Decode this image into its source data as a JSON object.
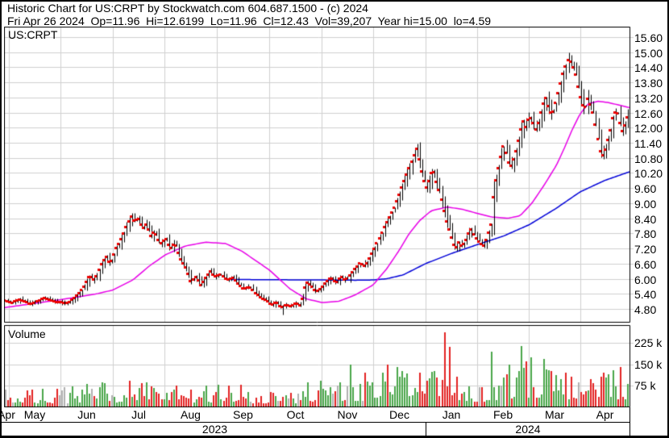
{
  "header": {
    "line1": "Historic Chart for US:CRPT by Stockwatch.com 604.687.1500 - (c) 2024",
    "line2": "Fri Apr 26 2024  Op=11.96  Hi=12.6199  Lo=11.96  Cl=12.43  Vol=39,207  Year hi=15.00  lo=4.59",
    "quote": {
      "date": "Fri Apr 26 2024",
      "open": "11.96",
      "high": "12.6199",
      "low": "11.96",
      "close": "12.43",
      "volume": "39,207",
      "year_high": "15.00",
      "year_low": "4.59"
    }
  },
  "chart_data": {
    "type": "ohlc+volume",
    "symbol": "US:CRPT",
    "volume_label": "Volume",
    "price_axis": {
      "labels": [
        "15.60",
        "15.00",
        "14.40",
        "13.80",
        "13.20",
        "12.60",
        "12.00",
        "11.40",
        "10.80",
        "10.20",
        "9.60",
        "9.00",
        "8.40",
        "7.80",
        "7.20",
        "6.60",
        "6.00",
        "5.40",
        "4.80"
      ],
      "max": 15.6,
      "min": 4.8,
      "step": 0.6
    },
    "volume_axis": {
      "labels": [
        "225 k",
        "150 k",
        "75 k"
      ],
      "values": [
        225,
        150,
        75
      ],
      "unit": "k"
    },
    "months": [
      "Apr",
      "May",
      "Jun",
      "Jul",
      "Aug",
      "Sep",
      "Oct",
      "Nov",
      "Dec",
      "Jan",
      "Feb",
      "Mar",
      "Apr"
    ],
    "month_bounds": [
      0,
      0.0077,
      0.0902,
      0.174,
      0.2565,
      0.3402,
      0.424,
      0.5077,
      0.5902,
      0.674,
      0.7565,
      0.839,
      0.9214,
      1.0
    ],
    "years": [
      {
        "label": "2023",
        "from": 0.0,
        "to": 0.674
      },
      {
        "label": "2024",
        "from": 0.674,
        "to": 1.0
      }
    ],
    "bars": 252,
    "close_anchors": [
      [
        0.001,
        5.15
      ],
      [
        0.013,
        5.05
      ],
      [
        0.026,
        5.2
      ],
      [
        0.045,
        5.0
      ],
      [
        0.064,
        5.25
      ],
      [
        0.084,
        5.1
      ],
      [
        0.103,
        5.05
      ],
      [
        0.116,
        5.3
      ],
      [
        0.129,
        5.7
      ],
      [
        0.138,
        6.15
      ],
      [
        0.146,
        5.95
      ],
      [
        0.155,
        6.5
      ],
      [
        0.164,
        6.9
      ],
      [
        0.171,
        6.6
      ],
      [
        0.18,
        7.2
      ],
      [
        0.189,
        7.6
      ],
      [
        0.197,
        8.1
      ],
      [
        0.204,
        8.5
      ],
      [
        0.21,
        8.25
      ],
      [
        0.215,
        8.45
      ],
      [
        0.223,
        8.0
      ],
      [
        0.229,
        8.2
      ],
      [
        0.236,
        7.7
      ],
      [
        0.242,
        7.9
      ],
      [
        0.251,
        7.4
      ],
      [
        0.26,
        7.6
      ],
      [
        0.267,
        7.2
      ],
      [
        0.274,
        7.45
      ],
      [
        0.283,
        6.8
      ],
      [
        0.293,
        6.4
      ],
      [
        0.3,
        5.9
      ],
      [
        0.308,
        6.1
      ],
      [
        0.316,
        5.75
      ],
      [
        0.323,
        6.05
      ],
      [
        0.331,
        6.3
      ],
      [
        0.339,
        6.1
      ],
      [
        0.348,
        6.2
      ],
      [
        0.357,
        5.95
      ],
      [
        0.367,
        6.05
      ],
      [
        0.376,
        5.8
      ],
      [
        0.385,
        5.6
      ],
      [
        0.393,
        5.7
      ],
      [
        0.403,
        5.45
      ],
      [
        0.412,
        5.25
      ],
      [
        0.421,
        5.15
      ],
      [
        0.429,
        4.95
      ],
      [
        0.437,
        5.1
      ],
      [
        0.445,
        4.85
      ],
      [
        0.452,
        5.0
      ],
      [
        0.46,
        4.9
      ],
      [
        0.468,
        5.05
      ],
      [
        0.476,
        4.95
      ],
      [
        0.484,
        5.9
      ],
      [
        0.492,
        5.75
      ],
      [
        0.5,
        5.5
      ],
      [
        0.508,
        5.65
      ],
      [
        0.517,
        5.9
      ],
      [
        0.524,
        6.05
      ],
      [
        0.532,
        5.85
      ],
      [
        0.54,
        6.1
      ],
      [
        0.548,
        5.95
      ],
      [
        0.555,
        6.2
      ],
      [
        0.563,
        6.45
      ],
      [
        0.571,
        6.65
      ],
      [
        0.579,
        6.5
      ],
      [
        0.586,
        6.85
      ],
      [
        0.594,
        7.25
      ],
      [
        0.602,
        7.65
      ],
      [
        0.609,
        8.05
      ],
      [
        0.617,
        8.45
      ],
      [
        0.625,
        8.85
      ],
      [
        0.633,
        9.35
      ],
      [
        0.64,
        9.85
      ],
      [
        0.648,
        10.35
      ],
      [
        0.655,
        10.8
      ],
      [
        0.661,
        11.2
      ],
      [
        0.666,
        10.6
      ],
      [
        0.671,
        10.0
      ],
      [
        0.677,
        9.6
      ],
      [
        0.682,
        10.0
      ],
      [
        0.687,
        10.4
      ],
      [
        0.692,
        9.9
      ],
      [
        0.697,
        9.5
      ],
      [
        0.702,
        9.0
      ],
      [
        0.707,
        8.4
      ],
      [
        0.713,
        7.9
      ],
      [
        0.718,
        7.5
      ],
      [
        0.723,
        7.2
      ],
      [
        0.728,
        7.45
      ],
      [
        0.734,
        7.3
      ],
      [
        0.741,
        7.6
      ],
      [
        0.747,
        8.0
      ],
      [
        0.754,
        7.7
      ],
      [
        0.76,
        7.5
      ],
      [
        0.767,
        7.3
      ],
      [
        0.773,
        7.6
      ],
      [
        0.78,
        8.2
      ],
      [
        0.785,
        9.6
      ],
      [
        0.79,
        10.2
      ],
      [
        0.795,
        10.8
      ],
      [
        0.8,
        11.3
      ],
      [
        0.805,
        10.9
      ],
      [
        0.81,
        10.4
      ],
      [
        0.816,
        10.8
      ],
      [
        0.821,
        11.2
      ],
      [
        0.826,
        11.8
      ],
      [
        0.831,
        12.3
      ],
      [
        0.836,
        12.0
      ],
      [
        0.841,
        12.5
      ],
      [
        0.847,
        12.2
      ],
      [
        0.852,
        11.9
      ],
      [
        0.857,
        12.4
      ],
      [
        0.862,
        12.9
      ],
      [
        0.867,
        13.2
      ],
      [
        0.872,
        12.8
      ],
      [
        0.877,
        12.5
      ],
      [
        0.883,
        13.0
      ],
      [
        0.888,
        13.5
      ],
      [
        0.893,
        14.0
      ],
      [
        0.898,
        14.4
      ],
      [
        0.903,
        14.7
      ],
      [
        0.908,
        14.6
      ],
      [
        0.914,
        14.2
      ],
      [
        0.919,
        13.6
      ],
      [
        0.924,
        13.1
      ],
      [
        0.929,
        12.7
      ],
      [
        0.934,
        13.2
      ],
      [
        0.939,
        12.9
      ],
      [
        0.944,
        12.5
      ],
      [
        0.95,
        11.6
      ],
      [
        0.955,
        11.0
      ],
      [
        0.96,
        10.9
      ],
      [
        0.965,
        11.4
      ],
      [
        0.97,
        11.9
      ],
      [
        0.975,
        12.5
      ],
      [
        0.981,
        12.7
      ],
      [
        0.986,
        12.2
      ],
      [
        0.991,
        11.8
      ],
      [
        0.997,
        12.43
      ]
    ],
    "ma_fast_anchors": [
      [
        0.0,
        4.85
      ],
      [
        0.058,
        5.05
      ],
      [
        0.112,
        5.25
      ],
      [
        0.148,
        5.4
      ],
      [
        0.174,
        5.55
      ],
      [
        0.206,
        5.95
      ],
      [
        0.232,
        6.5
      ],
      [
        0.258,
        6.95
      ],
      [
        0.29,
        7.3
      ],
      [
        0.322,
        7.45
      ],
      [
        0.354,
        7.4
      ],
      [
        0.38,
        7.1
      ],
      [
        0.424,
        6.35
      ],
      [
        0.457,
        5.6
      ],
      [
        0.483,
        5.2
      ],
      [
        0.509,
        5.05
      ],
      [
        0.535,
        5.1
      ],
      [
        0.561,
        5.35
      ],
      [
        0.59,
        5.75
      ],
      [
        0.612,
        6.4
      ],
      [
        0.631,
        7.1
      ],
      [
        0.648,
        7.8
      ],
      [
        0.664,
        8.3
      ],
      [
        0.683,
        8.7
      ],
      [
        0.709,
        8.85
      ],
      [
        0.734,
        8.75
      ],
      [
        0.756,
        8.6
      ],
      [
        0.78,
        8.45
      ],
      [
        0.805,
        8.4
      ],
      [
        0.825,
        8.5
      ],
      [
        0.844,
        9.0
      ],
      [
        0.863,
        9.7
      ],
      [
        0.883,
        10.5
      ],
      [
        0.896,
        11.2
      ],
      [
        0.908,
        11.9
      ],
      [
        0.921,
        12.55
      ],
      [
        0.934,
        12.95
      ],
      [
        0.95,
        13.05
      ],
      [
        0.966,
        13.0
      ],
      [
        0.983,
        12.9
      ],
      [
        1.0,
        12.8
      ]
    ],
    "ma_slow_anchors": [
      [
        0.361,
        5.97
      ],
      [
        0.424,
        5.96
      ],
      [
        0.508,
        5.95
      ],
      [
        0.561,
        5.94
      ],
      [
        0.59,
        5.95
      ],
      [
        0.612,
        6.0
      ],
      [
        0.638,
        6.15
      ],
      [
        0.674,
        6.6
      ],
      [
        0.715,
        7.0
      ],
      [
        0.756,
        7.35
      ],
      [
        0.799,
        7.7
      ],
      [
        0.84,
        8.15
      ],
      [
        0.883,
        8.8
      ],
      [
        0.921,
        9.45
      ],
      [
        0.96,
        9.9
      ],
      [
        1.0,
        10.25
      ]
    ],
    "volume_envelope": [
      [
        0.0,
        35
      ],
      [
        0.1,
        40
      ],
      [
        0.17,
        50
      ],
      [
        0.2,
        55
      ],
      [
        0.25,
        45
      ],
      [
        0.3,
        40
      ],
      [
        0.35,
        45
      ],
      [
        0.42,
        40
      ],
      [
        0.46,
        35
      ],
      [
        0.5,
        55
      ],
      [
        0.55,
        60
      ],
      [
        0.58,
        70
      ],
      [
        0.61,
        75
      ],
      [
        0.64,
        70
      ],
      [
        0.67,
        75
      ],
      [
        0.7,
        80
      ],
      [
        0.73,
        55
      ],
      [
        0.76,
        50
      ],
      [
        0.78,
        60
      ],
      [
        0.8,
        90
      ],
      [
        0.83,
        100
      ],
      [
        0.86,
        95
      ],
      [
        0.89,
        85
      ],
      [
        0.92,
        75
      ],
      [
        0.95,
        80
      ],
      [
        0.98,
        85
      ],
      [
        1.0,
        60
      ]
    ],
    "volume_spikes": [
      [
        0.201,
        92,
        "down"
      ],
      [
        0.358,
        75,
        "down"
      ],
      [
        0.552,
        148,
        "up"
      ],
      [
        0.612,
        150,
        "down"
      ],
      [
        0.628,
        140,
        "up"
      ],
      [
        0.664,
        120,
        "down"
      ],
      [
        0.705,
        262,
        "down"
      ],
      [
        0.712,
        212,
        "down"
      ],
      [
        0.76,
        70,
        "neutral"
      ],
      [
        0.781,
        195,
        "up"
      ],
      [
        0.795,
        75,
        "neutral"
      ],
      [
        0.808,
        150,
        "up"
      ],
      [
        0.827,
        215,
        "up"
      ],
      [
        0.834,
        160,
        "down"
      ],
      [
        0.845,
        175,
        "up"
      ],
      [
        0.872,
        130,
        "up"
      ],
      [
        0.9,
        120,
        "down"
      ],
      [
        0.92,
        85,
        "neutral"
      ],
      [
        0.96,
        120,
        "down"
      ],
      [
        0.975,
        130,
        "up"
      ],
      [
        0.988,
        140,
        "down"
      ]
    ],
    "year_high": 15.0,
    "year_low": 4.59
  },
  "colors": {
    "bar": "#000000",
    "close_tick": "#ee0000",
    "ma_fast": "#e800e8",
    "ma_slow": "#0000d8",
    "vol_up": "#4aa64a",
    "vol_down": "#e32222",
    "vol_neutral": "#b0b0b0",
    "grid": "#d0d0d0",
    "border": "#000000",
    "text": "#000000",
    "background": "#ffffff"
  }
}
